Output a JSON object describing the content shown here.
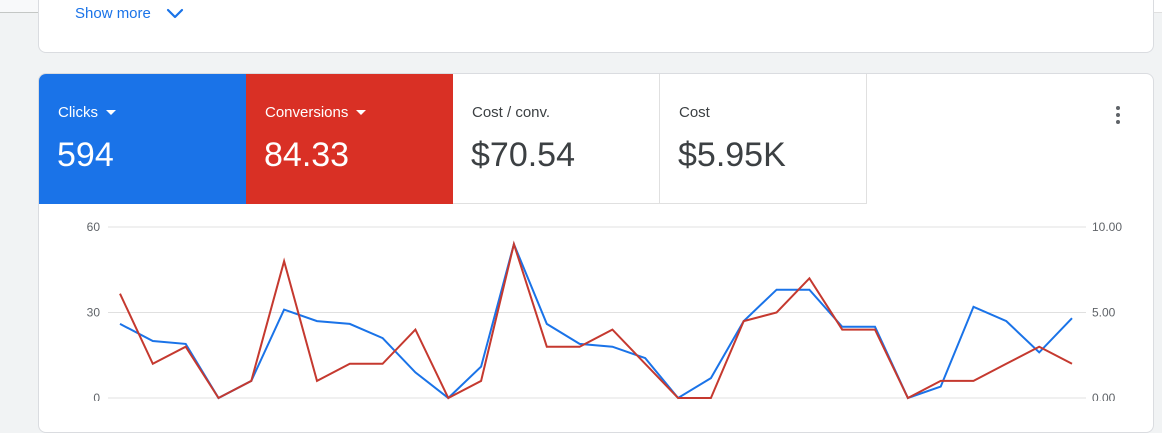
{
  "top_card": {
    "show_more_label": "Show more"
  },
  "scorecards": [
    {
      "label": "Clicks",
      "value": "594",
      "color": "#1a73e8",
      "active": true,
      "has_dropdown": true
    },
    {
      "label": "Conversions",
      "value": "84.33",
      "color": "#d93025",
      "active": true,
      "has_dropdown": true
    },
    {
      "label": "Cost / conv.",
      "value": "$70.54",
      "active": false,
      "has_dropdown": false
    },
    {
      "label": "Cost",
      "value": "$5.95K",
      "active": false,
      "has_dropdown": false
    }
  ],
  "icons": {
    "show_more": "chevron-down-icon",
    "more_options": "more-vert-icon"
  },
  "chart_data": {
    "type": "line",
    "grid": true,
    "y_left": {
      "ticks": [
        "60",
        "30",
        "0"
      ],
      "range": [
        0,
        60
      ]
    },
    "y_right": {
      "ticks": [
        "10.00",
        "5.00",
        "0.00"
      ],
      "range": [
        0,
        10
      ]
    },
    "series": [
      {
        "color": "#1a73e8",
        "axis": "left",
        "values": [
          26,
          20,
          19,
          0,
          6,
          31,
          27,
          26,
          21,
          9,
          0,
          11,
          54,
          26,
          19,
          18,
          14,
          0,
          7,
          27,
          38,
          38,
          25,
          25,
          0,
          4,
          32,
          27,
          16,
          28
        ]
      },
      {
        "color": "#c5392f",
        "axis": "right",
        "values": [
          6.1,
          2,
          3,
          0,
          1,
          8,
          1,
          2,
          2,
          4,
          0,
          1,
          9,
          3,
          3,
          4,
          2,
          0,
          0,
          4.5,
          5,
          7,
          4,
          4,
          0,
          1,
          1,
          2,
          3,
          2
        ]
      }
    ]
  }
}
